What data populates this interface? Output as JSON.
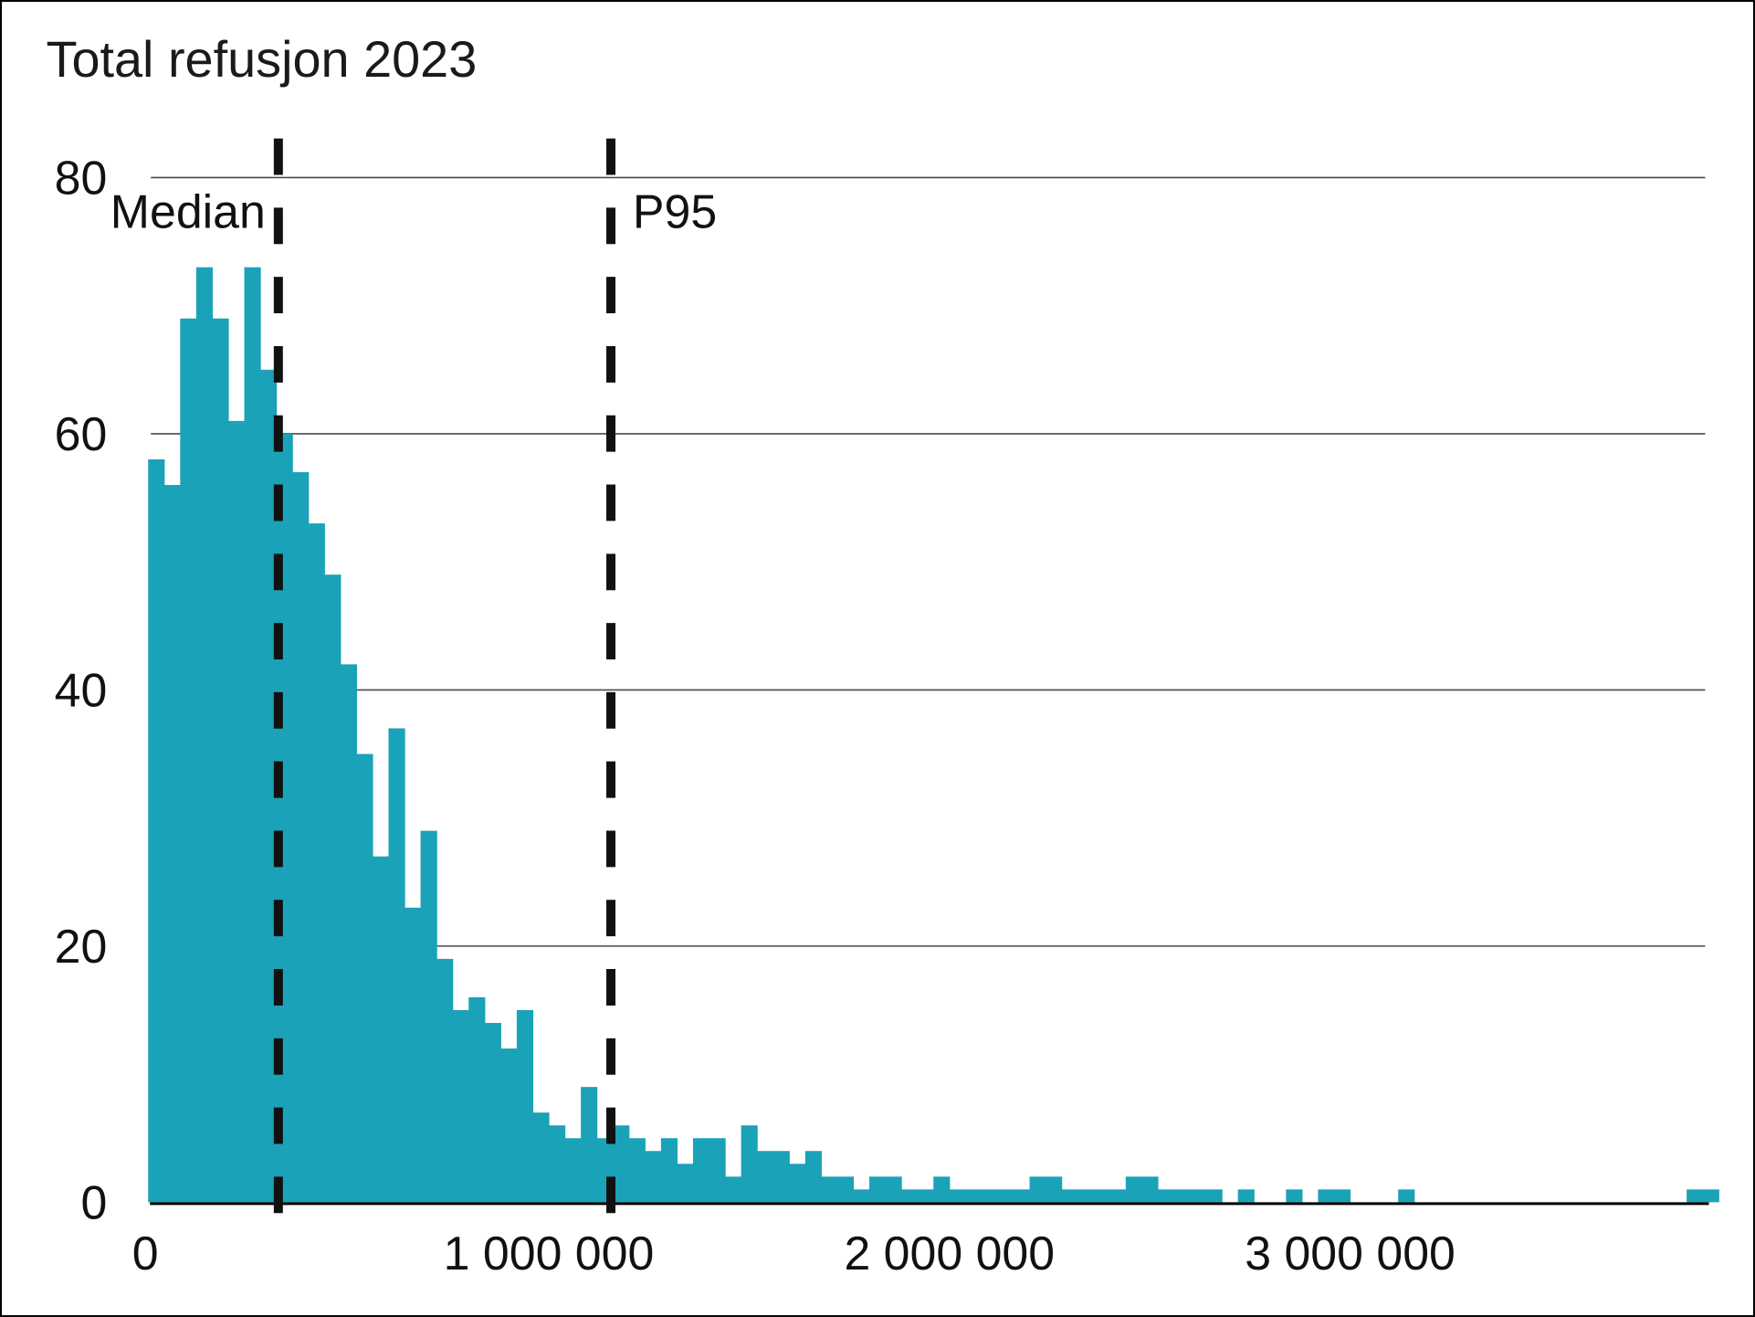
{
  "title": "Total refusjon 2023",
  "chart_data": {
    "type": "bar",
    "subtype": "histogram",
    "title": "Total refusjon 2023",
    "xlabel": "",
    "ylabel": "",
    "bin_start": 0,
    "bin_width": 40000,
    "values": [
      58,
      56,
      69,
      73,
      69,
      61,
      73,
      65,
      60,
      57,
      53,
      49,
      42,
      35,
      27,
      37,
      23,
      29,
      19,
      15,
      16,
      14,
      12,
      15,
      7,
      6,
      5,
      9,
      5,
      6,
      5,
      4,
      5,
      3,
      5,
      5,
      2,
      6,
      4,
      4,
      3,
      4,
      2,
      2,
      1,
      2,
      2,
      1,
      1,
      2,
      1,
      1,
      1,
      1,
      1,
      2,
      2,
      1,
      1,
      1,
      1,
      2,
      2,
      1,
      1,
      1,
      1,
      0,
      1,
      0,
      0,
      1,
      0,
      1,
      1,
      0,
      0,
      0,
      1,
      0,
      0,
      0,
      0,
      0,
      0,
      0,
      0,
      0,
      0,
      0,
      0,
      0,
      0,
      0,
      0,
      0,
      1,
      1
    ],
    "xlim": [
      0,
      3920000
    ],
    "ylim": [
      0,
      80
    ],
    "grid": "horizontal",
    "legend": "none",
    "y_ticks": [
      {
        "value": 0,
        "label": "0"
      },
      {
        "value": 20,
        "label": "20"
      },
      {
        "value": 40,
        "label": "40"
      },
      {
        "value": 60,
        "label": "60"
      },
      {
        "value": 80,
        "label": "80"
      }
    ],
    "x_ticks": [
      {
        "value": 0,
        "label": "0"
      },
      {
        "value": 1000000,
        "label": "1 000 000"
      },
      {
        "value": 2000000,
        "label": "2 000 000"
      },
      {
        "value": 3000000,
        "label": "3 000 000"
      }
    ],
    "annotations": [
      {
        "id": "median",
        "label": "Median",
        "value": 325000,
        "label_side": "left"
      },
      {
        "id": "p95",
        "label": "P95",
        "value": 1155000,
        "label_side": "right"
      }
    ],
    "colors": {
      "bar": "#1AA2B8",
      "grid": "#4a4a4a",
      "axis": "#000000",
      "annotation_line": "#111111",
      "text": "#1a1a1a"
    }
  }
}
